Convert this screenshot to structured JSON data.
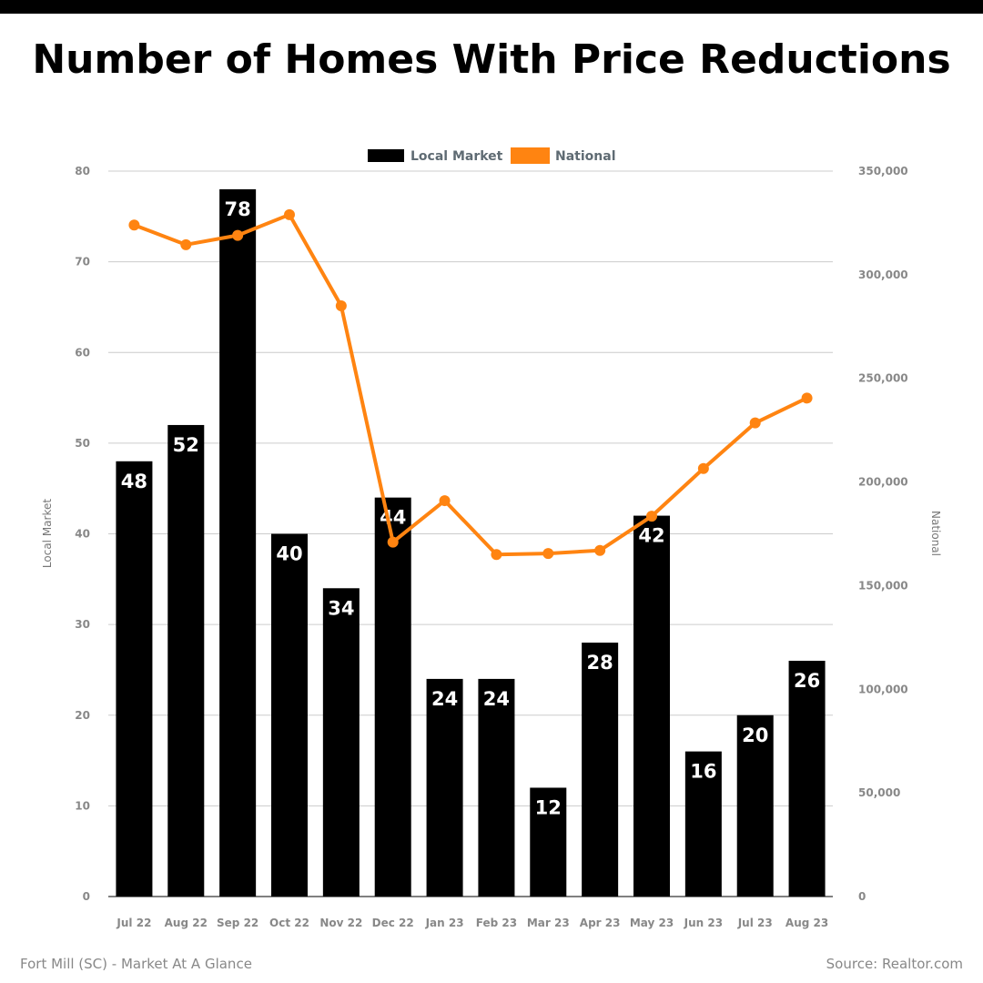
{
  "chart_data": {
    "type": "bar",
    "title": "Number of Homes With Price Reductions",
    "categories": [
      "Jul 22",
      "Aug 22",
      "Sep 22",
      "Oct 22",
      "Nov 22",
      "Dec 22",
      "Jan 23",
      "Feb 23",
      "Mar 23",
      "Apr 23",
      "May 23",
      "Jun 23",
      "Jul 23",
      "Aug 23"
    ],
    "series": [
      {
        "name": "Local Market",
        "type": "bar",
        "axis": "left",
        "color": "#000000",
        "values": [
          48,
          52,
          78,
          40,
          34,
          44,
          24,
          24,
          12,
          28,
          42,
          16,
          20,
          26
        ],
        "data_labels": [
          "48",
          "52",
          "78",
          "40",
          "34",
          "44",
          "24",
          "24",
          "12",
          "28",
          "42",
          "16",
          "20",
          "26"
        ]
      },
      {
        "name": "National",
        "type": "line",
        "axis": "right",
        "color": "#ff8411",
        "values": [
          324000,
          314500,
          319000,
          329000,
          285000,
          171000,
          191000,
          165000,
          165500,
          167000,
          183500,
          206500,
          228500,
          240500
        ]
      }
    ],
    "ylabel": "Local Market",
    "y2label": "National",
    "ylim": [
      0,
      80
    ],
    "y2lim": [
      0,
      350000
    ],
    "yticks": [
      "0",
      "10",
      "20",
      "30",
      "40",
      "50",
      "60",
      "70",
      "80"
    ],
    "y2ticks": [
      "0",
      "50,000",
      "100,000",
      "150,000",
      "200,000",
      "250,000",
      "300,000",
      "350,000"
    ],
    "grid": true,
    "legend_position": "top-center"
  },
  "footer": {
    "left": "Fort Mill (SC) - Market At A Glance",
    "right": "Source: Realtor.com"
  }
}
